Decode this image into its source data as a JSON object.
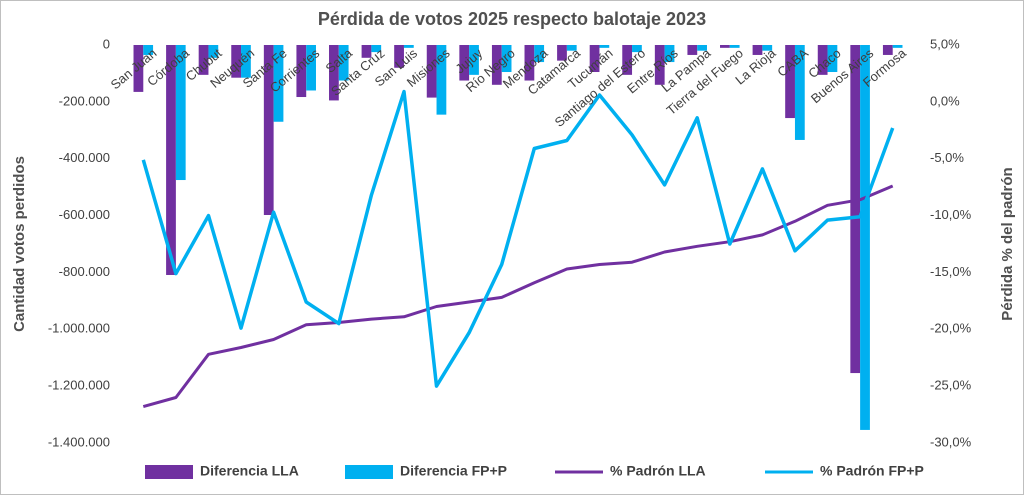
{
  "chart_data": {
    "type": "bar",
    "title": "Pérdida de votos 2025 respecto balotaje 2023",
    "y_label": "Cantidad votos perdidos",
    "y2_label": "Pérdida % del padrón",
    "categories": [
      "San Juan",
      "Córdoba",
      "Chubut",
      "Neuquén",
      "Santa Fe",
      "Corrientes",
      "Salta",
      "Santa Cruz",
      "San Luis",
      "Misiones",
      "Jujuy",
      "Río Negro",
      "Mendoza",
      "Catamarca",
      "Tucumán",
      "Santiago del Estero",
      "Entre Ríos",
      "La Pampa",
      "Tierra del Fuego",
      "La Rioja",
      "CABA",
      "Chaco",
      "Buenos Aires",
      "Formosa"
    ],
    "series": [
      {
        "name": "Diferencia LLA",
        "type": "bar",
        "color": "#7030a0",
        "values": [
          -165000,
          -809000,
          -105000,
          -115000,
          -598000,
          -183000,
          -195000,
          -45000,
          -80000,
          -185000,
          -125000,
          -140000,
          -125000,
          -55000,
          -95000,
          -105000,
          -140000,
          -35000,
          -10000,
          -35000,
          -257000,
          -105000,
          -1154000,
          -35000
        ]
      },
      {
        "name": "Diferencia FP+P",
        "type": "bar",
        "color": "#00b0f0",
        "values": [
          -35000,
          -475000,
          -45000,
          -115000,
          -270000,
          -160000,
          -125000,
          -25000,
          -10000,
          -245000,
          -105000,
          -95000,
          -60000,
          -20000,
          -10000,
          -25000,
          -60000,
          -20000,
          -10000,
          -20000,
          -334000,
          -95000,
          -1354000,
          -10000
        ]
      },
      {
        "name": "% Padrón LLA",
        "type": "line",
        "axis": "y2",
        "color": "#7030a0",
        "values": [
          -26.8,
          -26.0,
          -22.2,
          -21.6,
          -20.9,
          -19.6,
          -19.4,
          -19.1,
          -18.9,
          -18.0,
          -17.6,
          -17.2,
          -15.9,
          -14.7,
          -14.3,
          -14.1,
          -13.2,
          -12.7,
          -12.3,
          -11.7,
          -10.5,
          -9.1,
          -8.6,
          -7.4
        ]
      },
      {
        "name": "% Padrón FP+P",
        "type": "line",
        "axis": "y2",
        "color": "#00b0f0",
        "values": [
          -5.1,
          -15.1,
          -10.0,
          -19.9,
          -9.7,
          -17.6,
          -19.5,
          -8.2,
          0.9,
          -25.0,
          -20.3,
          -14.3,
          -4.1,
          -3.4,
          0.6,
          -2.9,
          -7.3,
          -1.4,
          -12.5,
          -5.9,
          -13.1,
          -10.4,
          -10.1,
          -2.3
        ]
      }
    ],
    "ylim": [
      -1400000,
      0
    ],
    "yticks": [
      {
        "value": -1400000,
        "label": "-1.400.000"
      },
      {
        "value": -1200000,
        "label": "-1.200.000"
      },
      {
        "value": -1000000,
        "label": "-1.000.000"
      },
      {
        "value": -800000,
        "label": "-800.000"
      },
      {
        "value": -600000,
        "label": "-600.000"
      },
      {
        "value": -400000,
        "label": "-400.000"
      },
      {
        "value": -200000,
        "label": "-200.000"
      },
      0
    ],
    "y2lim": [
      -30,
      5
    ],
    "y2ticks": [
      {
        "value": -30,
        "label": "-30,0%"
      },
      {
        "value": -25,
        "label": "-25,0%"
      },
      {
        "value": -20,
        "label": "-20,0%"
      },
      {
        "value": -15,
        "label": "-15,0%"
      },
      {
        "value": -10,
        "label": "-10,0%"
      },
      {
        "value": -5,
        "label": "-5,0%"
      },
      {
        "value": 0,
        "label": "0,0%"
      },
      {
        "value": 5,
        "label": "5,0%"
      }
    ],
    "legend": "bottom"
  }
}
